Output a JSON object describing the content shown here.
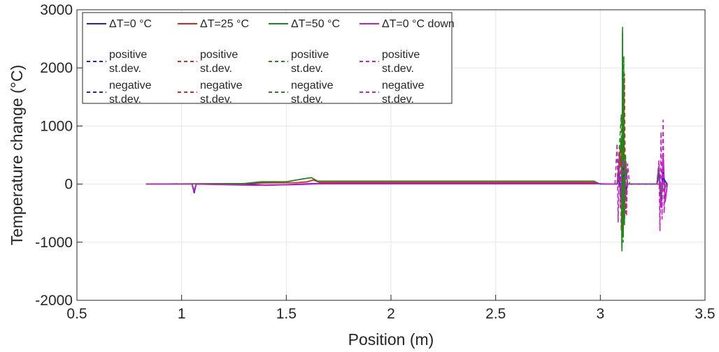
{
  "chart_data": {
    "type": "line",
    "title": "",
    "xlabel": "Position (m)",
    "ylabel": "Temperature change (°C)",
    "xlim": [
      0.5,
      3.5
    ],
    "ylim": [
      -2000,
      3000
    ],
    "xticks": [
      "0.5",
      "1",
      "1.5",
      "2",
      "2.5",
      "3",
      "3.5"
    ],
    "yticks": [
      "-2000",
      "-1000",
      "0",
      "1000",
      "2000",
      "3000"
    ],
    "grid": true,
    "legend_position": "top-left",
    "colors": {
      "blue": "#1f1fd6",
      "red": "#e0231c",
      "green": "#1a8a1a",
      "magenta": "#c41fc9",
      "grid": "#e6e6e6",
      "axis": "#262626"
    },
    "legend": [
      {
        "label": "ΔT=0 °C",
        "style": "solid",
        "color": "blue"
      },
      {
        "label": "ΔT=25 °C",
        "style": "solid",
        "color": "red"
      },
      {
        "label": "ΔT=50 °C",
        "style": "solid",
        "color": "green"
      },
      {
        "label": "ΔT=0 °C down",
        "style": "solid",
        "color": "magenta"
      },
      {
        "label": "positive\nst.dev.",
        "style": "dashed",
        "color": "blue"
      },
      {
        "label": "positive\nst.dev.",
        "style": "dashed",
        "color": "red"
      },
      {
        "label": "positive\nst.dev.",
        "style": "dashed",
        "color": "green"
      },
      {
        "label": "positive\nst.dev.",
        "style": "dashed",
        "color": "magenta"
      },
      {
        "label": "negative\nst.dev.",
        "style": "dashed",
        "color": "blue"
      },
      {
        "label": "negative\nst.dev.",
        "style": "dashed",
        "color": "red"
      },
      {
        "label": "negative\nst.dev.",
        "style": "dashed",
        "color": "green"
      },
      {
        "label": "negative\nst.dev.",
        "style": "dashed",
        "color": "magenta"
      }
    ],
    "series": [
      {
        "color": "blue",
        "style": "solid",
        "x": [
          0.83,
          1.05,
          1.06,
          1.07,
          1.3,
          1.4,
          1.5,
          1.6,
          1.65,
          2.0,
          2.5,
          2.99,
          3.01,
          3.08,
          3.09,
          3.1,
          3.11,
          3.12,
          3.13,
          3.27,
          3.28,
          3.29,
          3.3,
          3.32
        ],
        "y": [
          0,
          0,
          -150,
          0,
          5,
          -20,
          -10,
          5,
          10,
          10,
          10,
          10,
          0,
          0,
          80,
          -300,
          200,
          -100,
          0,
          0,
          150,
          -200,
          100,
          0
        ]
      },
      {
        "color": "red",
        "style": "solid",
        "x": [
          0.83,
          1.3,
          1.4,
          1.55,
          1.6,
          1.63,
          1.66,
          2.0,
          2.5,
          2.98,
          3.0,
          3.08,
          3.1,
          3.105,
          3.11,
          3.115,
          3.12,
          3.13,
          3.32
        ],
        "y": [
          0,
          10,
          20,
          25,
          40,
          70,
          30,
          30,
          30,
          30,
          0,
          0,
          500,
          -700,
          1800,
          -600,
          400,
          0,
          0
        ]
      },
      {
        "color": "green",
        "style": "solid",
        "x": [
          0.83,
          1.3,
          1.38,
          1.5,
          1.58,
          1.62,
          1.65,
          2.0,
          2.5,
          2.97,
          2.98,
          3.0,
          3.08,
          3.1,
          3.103,
          3.106,
          3.109,
          3.112,
          3.115,
          3.12,
          3.13,
          3.27,
          3.28,
          3.29,
          3.32
        ],
        "y": [
          0,
          10,
          40,
          40,
          90,
          110,
          50,
          50,
          50,
          50,
          30,
          0,
          0,
          800,
          -1100,
          2600,
          -900,
          1500,
          -500,
          300,
          0,
          0,
          200,
          -150,
          0
        ]
      },
      {
        "color": "magenta",
        "style": "solid",
        "x": [
          0.83,
          1.05,
          1.06,
          1.07,
          1.35,
          1.45,
          1.55,
          1.65,
          2.0,
          2.5,
          3.0,
          3.08,
          3.09,
          3.1,
          3.11,
          3.12,
          3.13,
          3.27,
          3.28,
          3.29,
          3.3,
          3.31,
          3.32
        ],
        "y": [
          0,
          0,
          -120,
          0,
          -20,
          -15,
          -10,
          5,
          5,
          5,
          5,
          0,
          200,
          -300,
          400,
          -200,
          0,
          0,
          300,
          -400,
          500,
          -300,
          0
        ]
      },
      {
        "color": "blue",
        "style": "dashed",
        "x": [
          3.08,
          3.09,
          3.1,
          3.11,
          3.12,
          3.13,
          3.27,
          3.28,
          3.29,
          3.3,
          3.31
        ],
        "y": [
          0,
          200,
          -300,
          300,
          -150,
          0,
          0,
          250,
          -250,
          200,
          0
        ]
      },
      {
        "color": "red",
        "style": "dashed",
        "x": [
          3.08,
          3.095,
          3.1,
          3.105,
          3.11,
          3.115,
          3.12,
          3.13
        ],
        "y": [
          0,
          600,
          -800,
          1300,
          -700,
          1900,
          -500,
          0
        ]
      },
      {
        "color": "green",
        "style": "dashed",
        "x": [
          3.08,
          3.1,
          3.103,
          3.106,
          3.109,
          3.112,
          3.115,
          3.12,
          3.13,
          3.27,
          3.28,
          3.29,
          3.3
        ],
        "y": [
          0,
          1200,
          -1150,
          2700,
          -1000,
          2200,
          -700,
          500,
          0,
          0,
          300,
          -200,
          0
        ]
      },
      {
        "color": "magenta",
        "style": "dashed",
        "x": [
          3.07,
          3.08,
          3.085,
          3.09,
          3.095,
          3.1,
          3.12,
          3.125,
          3.13,
          3.14,
          3.27,
          3.28,
          3.285,
          3.29,
          3.295,
          3.3,
          3.305,
          3.31
        ],
        "y": [
          0,
          700,
          -650,
          500,
          -400,
          300,
          400,
          -550,
          350,
          0,
          0,
          400,
          -800,
          900,
          -600,
          1100,
          -500,
          0
        ]
      }
    ]
  }
}
